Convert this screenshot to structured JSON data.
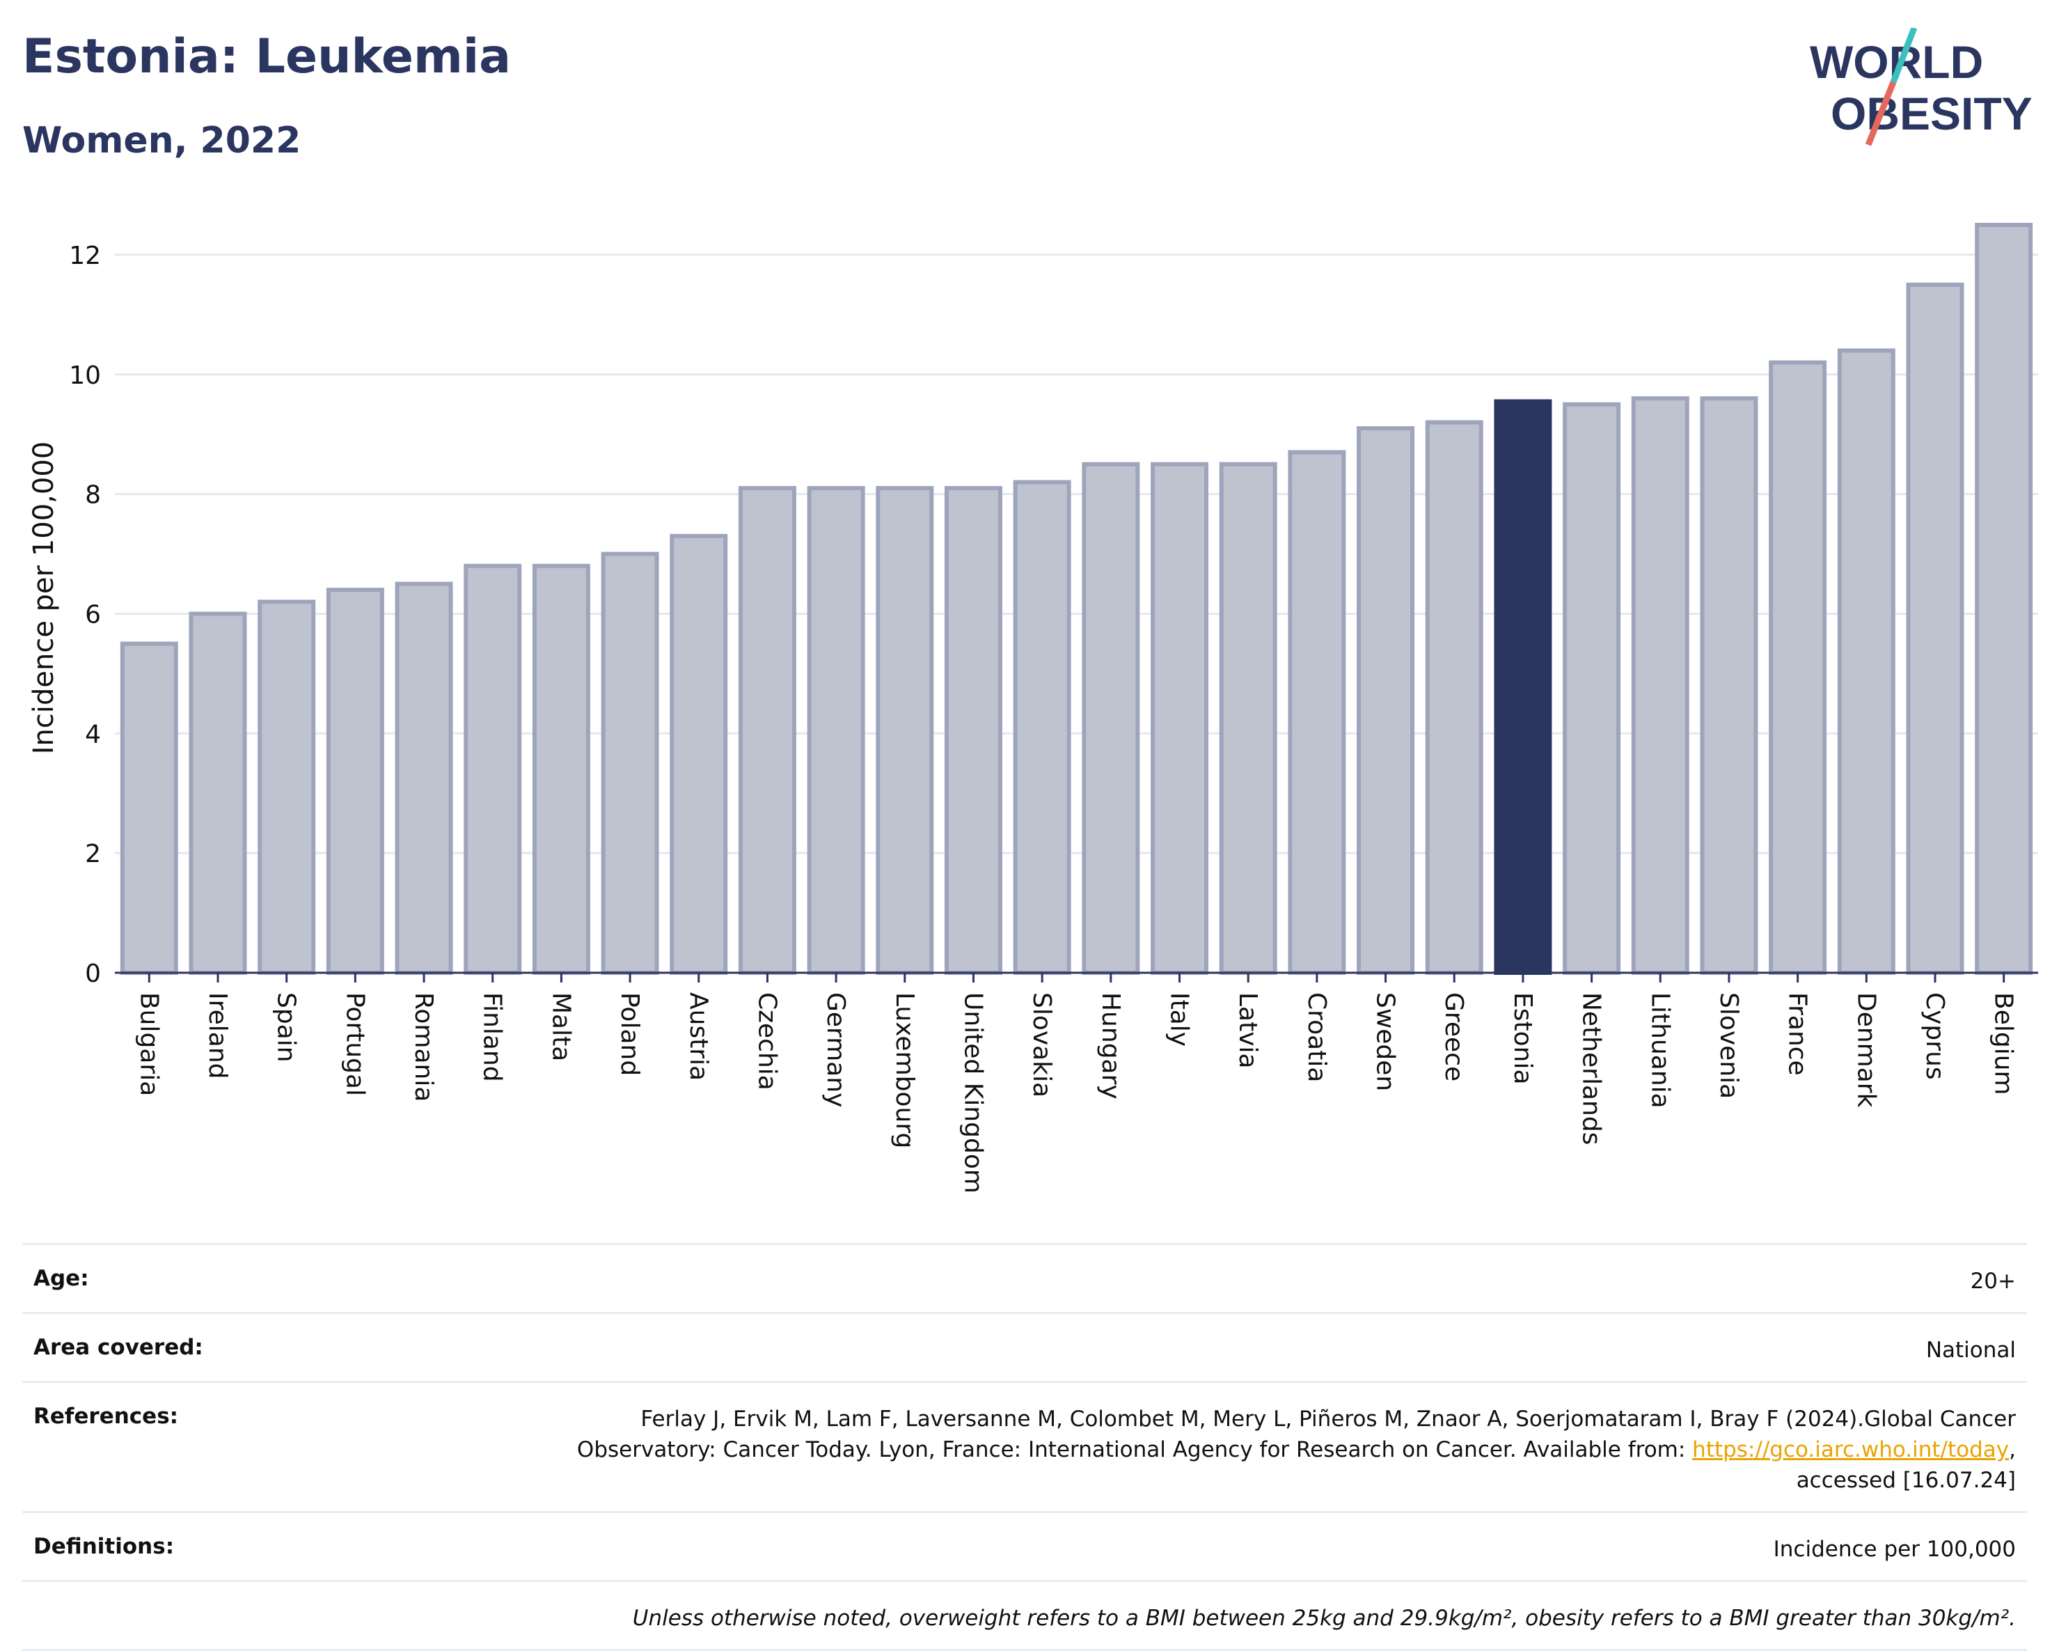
{
  "header": {
    "title": "Estonia: Leukemia",
    "subtitle": "Women, 2022",
    "logo_text_line1": "WORLD",
    "logo_text_line2": "OBESITY"
  },
  "colors": {
    "highlight": "#2a3560",
    "bar_fill": "#bfc3d0",
    "bar_stroke": "#9ea4bb",
    "grid": "#e6e8ef",
    "logo_teal": "#3bbfbf",
    "logo_coral": "#e4685c",
    "link": "#e8a400"
  },
  "chart_data": {
    "type": "bar",
    "ylabel": "Incidence per 100,000",
    "xlabel": "",
    "ylim": [
      0,
      13
    ],
    "yticks": [
      0,
      2,
      4,
      6,
      8,
      10,
      12
    ],
    "grid": true,
    "highlight": "Estonia",
    "categories": [
      "Bulgaria",
      "Ireland",
      "Spain",
      "Portugal",
      "Romania",
      "Finland",
      "Malta",
      "Poland",
      "Austria",
      "Czechia",
      "Germany",
      "Luxembourg",
      "United Kingdom",
      "Slovakia",
      "Hungary",
      "Italy",
      "Latvia",
      "Croatia",
      "Sweden",
      "Greece",
      "Estonia",
      "Netherlands",
      "Lithuania",
      "Slovenia",
      "France",
      "Denmark",
      "Cyprus",
      "Belgium"
    ],
    "values": [
      5.5,
      6.0,
      6.2,
      6.4,
      6.5,
      6.8,
      6.8,
      7.0,
      7.3,
      8.1,
      8.1,
      8.1,
      8.1,
      8.2,
      8.5,
      8.5,
      8.5,
      8.7,
      9.1,
      9.2,
      9.55,
      9.5,
      9.6,
      9.6,
      10.2,
      10.4,
      11.5,
      12.5
    ]
  },
  "meta": {
    "age_label": "Age:",
    "age_value": "20+",
    "area_label": "Area covered:",
    "area_value": "National",
    "references_label": "References:",
    "references_line1": "Ferlay J, Ervik M, Lam F, Laversanne M, Colombet M, Mery L, Piñeros M, Znaor A, Soerjomataram I, Bray F (2024).Global Cancer",
    "references_line2_pre": "Observatory: Cancer Today. Lyon, France: International Agency for Research on Cancer. Available from: ",
    "references_link": "https://gco.iarc.who.int/today",
    "references_line2_post": ",",
    "references_line3": "accessed [16.07.24]",
    "definitions_label": "Definitions:",
    "definitions_value": "Incidence per 100,000",
    "note": "Unless otherwise noted, overweight refers to a BMI between 25kg and 29.9kg/m², obesity refers to a BMI greater than 30kg/m²."
  }
}
